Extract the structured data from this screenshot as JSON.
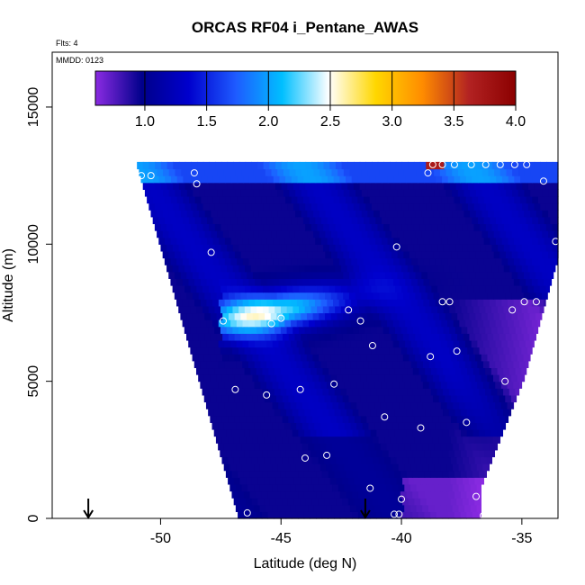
{
  "chart_data": {
    "type": "heatmap",
    "title": "ORCAS RF04 i_Pentane_AWAS",
    "flights_note": "Flts: 4",
    "date_note": "MMDD: 0123",
    "xlabel": "Latitude (deg N)",
    "ylabel": "Altitude (m)",
    "xlim": [
      -54.5,
      -33.5
    ],
    "ylim": [
      0,
      17000
    ],
    "x_ticks": [
      -50,
      -45,
      -40,
      -35
    ],
    "x_tick_labels": [
      "-50",
      "-45",
      "-40",
      "-35"
    ],
    "y_ticks": [
      0,
      5000,
      10000,
      15000
    ],
    "y_tick_labels": [
      "0",
      "5000",
      "10000",
      "15000"
    ],
    "colorbar": {
      "range": [
        0.6,
        4.0
      ],
      "ticks": [
        1.0,
        1.5,
        2.0,
        2.5,
        3.0,
        3.5,
        4.0
      ],
      "tick_labels": [
        "1.0",
        "1.5",
        "2.0",
        "2.5",
        "3.0",
        "3.5",
        "4.0"
      ],
      "colors": [
        "#8b2be2",
        "#00008b",
        "#0000cd",
        "#1e5aff",
        "#00bfff",
        "#ffffff",
        "#ffd700",
        "#ff8c00",
        "#b22222",
        "#8b0000"
      ]
    },
    "sample_points": [
      {
        "lat": -50.8,
        "alt": 12500
      },
      {
        "lat": -50.4,
        "alt": 12500
      },
      {
        "lat": -48.6,
        "alt": 12600
      },
      {
        "lat": -48.5,
        "alt": 12200
      },
      {
        "lat": -47.9,
        "alt": 9700
      },
      {
        "lat": -47.4,
        "alt": 7200
      },
      {
        "lat": -45.4,
        "alt": 7100
      },
      {
        "lat": -45.0,
        "alt": 7300
      },
      {
        "lat": -42.2,
        "alt": 7600
      },
      {
        "lat": -41.7,
        "alt": 7200
      },
      {
        "lat": -41.2,
        "alt": 6300
      },
      {
        "lat": -40.2,
        "alt": 9900
      },
      {
        "lat": -38.9,
        "alt": 12600
      },
      {
        "lat": -38.7,
        "alt": 12900
      },
      {
        "lat": -38.3,
        "alt": 12900
      },
      {
        "lat": -37.8,
        "alt": 12900
      },
      {
        "lat": -37.1,
        "alt": 12900
      },
      {
        "lat": -36.5,
        "alt": 12900
      },
      {
        "lat": -35.9,
        "alt": 12900
      },
      {
        "lat": -35.3,
        "alt": 12900
      },
      {
        "lat": -34.8,
        "alt": 12900
      },
      {
        "lat": -34.1,
        "alt": 12300
      },
      {
        "lat": -33.6,
        "alt": 10100
      },
      {
        "lat": -33.6,
        "alt": 8200
      },
      {
        "lat": -34.4,
        "alt": 7900
      },
      {
        "lat": -34.9,
        "alt": 7900
      },
      {
        "lat": -35.4,
        "alt": 7600
      },
      {
        "lat": -38.3,
        "alt": 7900
      },
      {
        "lat": -38.0,
        "alt": 7900
      },
      {
        "lat": -37.7,
        "alt": 6100
      },
      {
        "lat": -38.8,
        "alt": 5900
      },
      {
        "lat": -35.7,
        "alt": 5000
      },
      {
        "lat": -42.8,
        "alt": 4900
      },
      {
        "lat": -44.2,
        "alt": 4700
      },
      {
        "lat": -45.6,
        "alt": 4500
      },
      {
        "lat": -46.9,
        "alt": 4700
      },
      {
        "lat": -40.7,
        "alt": 3700
      },
      {
        "lat": -39.2,
        "alt": 3300
      },
      {
        "lat": -37.3,
        "alt": 3500
      },
      {
        "lat": -43.1,
        "alt": 2300
      },
      {
        "lat": -44.0,
        "alt": 2200
      },
      {
        "lat": -41.3,
        "alt": 1100
      },
      {
        "lat": -40.0,
        "alt": 700
      },
      {
        "lat": -36.9,
        "alt": 800
      },
      {
        "lat": -36.6,
        "alt": 100
      },
      {
        "lat": -40.1,
        "alt": 150
      },
      {
        "lat": -40.3,
        "alt": 150
      },
      {
        "lat": -46.4,
        "alt": 200
      }
    ],
    "arrow_markers_lat": [
      -53.0,
      -41.5
    ],
    "grid": false,
    "legend": "top colorbar"
  }
}
